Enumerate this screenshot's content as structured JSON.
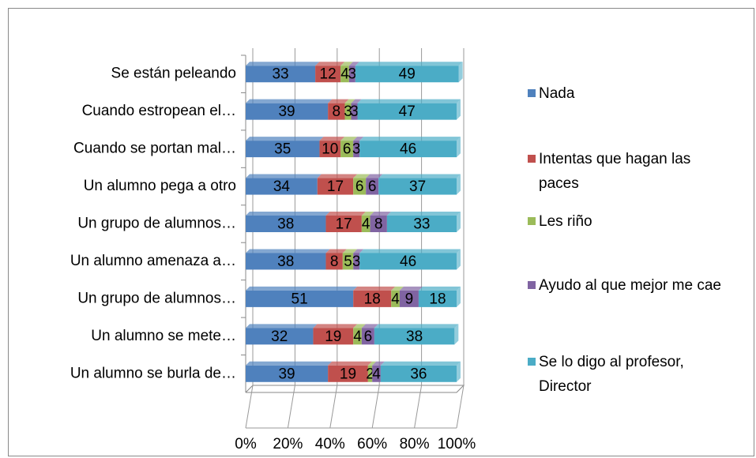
{
  "chart_data": {
    "type": "bar",
    "orientation": "horizontal",
    "stacked": true,
    "categories": [
      "Se están peleando",
      "Cuando estropean el…",
      "Cuando se portan mal…",
      "Un alumno pega a otro",
      "Un grupo de alumnos…",
      "Un alumno amenaza a…",
      "Un grupo de alumnos…",
      "Un alumno se mete…",
      "Un alumno se burla de…"
    ],
    "series": [
      {
        "name": "Nada",
        "color": "#4f81bd",
        "values": [
          33,
          39,
          35,
          34,
          38,
          38,
          51,
          32,
          39
        ]
      },
      {
        "name": "Intentas que hagan las paces",
        "color": "#c0504d",
        "values": [
          12,
          8,
          10,
          17,
          17,
          8,
          18,
          19,
          19
        ]
      },
      {
        "name": "Les riño",
        "color": "#9bbb59",
        "values": [
          4,
          3,
          6,
          6,
          4,
          5,
          4,
          4,
          2
        ]
      },
      {
        "name": "Ayudo al que mejor me cae",
        "color": "#8064a2",
        "values": [
          3,
          3,
          3,
          6,
          8,
          3,
          9,
          6,
          4
        ]
      },
      {
        "name": "Se lo digo al profesor, Director",
        "color": "#4bacc6",
        "values": [
          49,
          47,
          46,
          37,
          33,
          46,
          18,
          38,
          36
        ]
      }
    ],
    "xlim": [
      0,
      100
    ],
    "xticks": [
      {
        "value": 0,
        "label": "0%"
      },
      {
        "value": 20,
        "label": "20%"
      },
      {
        "value": 40,
        "label": "40%"
      },
      {
        "value": 60,
        "label": "60%"
      },
      {
        "value": 80,
        "label": "80%"
      },
      {
        "value": 100,
        "label": "100%"
      }
    ],
    "grid": true,
    "legend": "right"
  }
}
